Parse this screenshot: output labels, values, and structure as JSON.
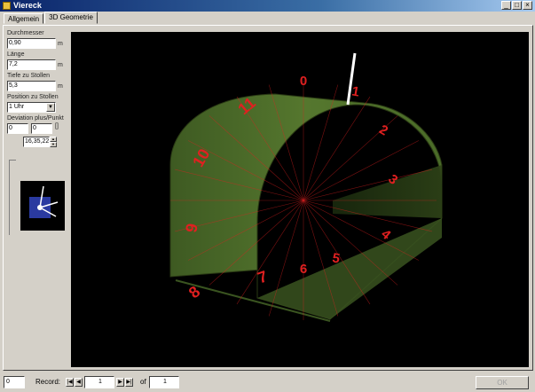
{
  "window": {
    "title": "Viereck"
  },
  "tabs": [
    "Allgemein",
    "3D Geometrie"
  ],
  "form": {
    "durchmesser_label": "Durchmesser",
    "durchmesser_value": "0,90",
    "durchmesser_unit": "m",
    "laenge_label": "Länge",
    "laenge_value": "7,2",
    "laenge_unit": "m",
    "tiefe_label": "Tiefe zu Stollen",
    "tiefe_value": "5,3",
    "tiefe_unit": "m",
    "position_label": "Position zu Stollen",
    "position_value": "1 Uhr",
    "deviation_label": "Deviation plus/Punkt",
    "dev_a": "0",
    "dev_b": "0",
    "dev_unit": "[]",
    "spin_value": "16,35,22"
  },
  "viewer": {
    "clock_numbers": [
      "0",
      "1",
      "2",
      "3",
      "4",
      "5",
      "6",
      "7",
      "8",
      "9",
      "10",
      "11"
    ],
    "colors": {
      "background": "#000000",
      "tunnel": "#4a6b2a",
      "labels": "#e02020"
    }
  },
  "statusbar": {
    "left_value": "0",
    "record_label": "Record:",
    "record_value": "1",
    "of_label": "of",
    "of_value": "1",
    "ok_label": "OK"
  }
}
